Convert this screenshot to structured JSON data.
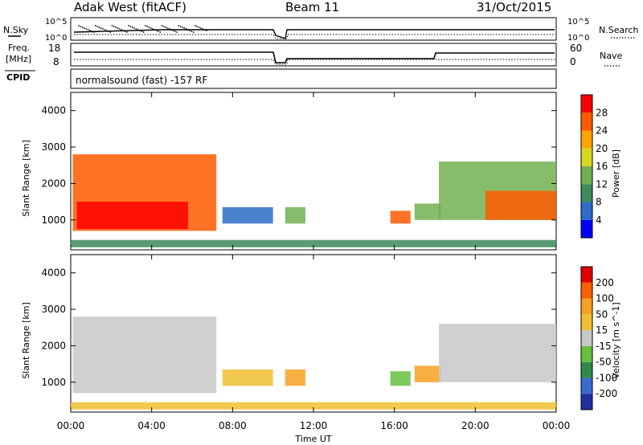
{
  "header": {
    "station": "Adak West (fitACF)",
    "beam": "Beam 11",
    "date": "31/Oct/2015"
  },
  "strips": {
    "noise_left_label": "N.Sky",
    "noise_left_ticks": [
      "10^5",
      "10^0"
    ],
    "noise_right_label": "N.Search",
    "noise_right_ticks": [
      "10^5",
      "10^0"
    ],
    "freq_label_line1": "Freq.",
    "freq_label_line2": "[MHz]",
    "freq_ticks": [
      "18",
      "8"
    ],
    "nave_label": "Nave",
    "nave_ticks": [
      "60",
      "0"
    ],
    "cpid_label": "CPID",
    "cpid_text": "normalsound (fast) -157 RF"
  },
  "chart_data": [
    {
      "type": "heatmap",
      "name": "power",
      "ylabel": "Slant Range [km]",
      "yticks": [
        "4000",
        "3000",
        "2000",
        "1000"
      ],
      "ylim": [
        180,
        4500
      ],
      "colorbar_label": "Power [dB]",
      "colorbar_ticks": [
        "28",
        "24",
        "20",
        "16",
        "12",
        "8",
        "4"
      ],
      "colormap": [
        "#0000ff",
        "#2a6cc8",
        "#3d8a5a",
        "#72b050",
        "#d8d820",
        "#ffa500",
        "#ff5a00",
        "#ff0000"
      ],
      "regions": [
        {
          "t0": 0.1,
          "t1": 7.2,
          "r0": 700,
          "r1": 2800,
          "level": 6
        },
        {
          "t0": 0.3,
          "t1": 5.8,
          "r0": 750,
          "r1": 1500,
          "level": 7
        },
        {
          "t0": 7.5,
          "t1": 10.0,
          "r0": 900,
          "r1": 1350,
          "level": 1
        },
        {
          "t0": 10.6,
          "t1": 11.6,
          "r0": 900,
          "r1": 1350,
          "level": 3
        },
        {
          "t0": 15.8,
          "t1": 16.8,
          "r0": 900,
          "r1": 1250,
          "level": 6
        },
        {
          "t0": 17.0,
          "t1": 18.3,
          "r0": 1000,
          "r1": 1450,
          "level": 3
        },
        {
          "t0": 18.2,
          "t1": 24.0,
          "r0": 1000,
          "r1": 2600,
          "level": 3
        },
        {
          "t0": 20.5,
          "t1": 24.0,
          "r0": 1000,
          "r1": 1800,
          "level": 6
        },
        {
          "t0": 0.0,
          "t1": 24.0,
          "r0": 250,
          "r1": 450,
          "level": 2
        }
      ]
    },
    {
      "type": "heatmap",
      "name": "velocity",
      "xlabel": "Time UT",
      "xticks": [
        "00:00",
        "04:00",
        "08:00",
        "12:00",
        "16:00",
        "20:00",
        "00:00"
      ],
      "xlim": [
        0,
        24
      ],
      "ylabel": "Slant Range [km]",
      "yticks": [
        "4000",
        "3000",
        "2000",
        "1000"
      ],
      "ylim": [
        180,
        4500
      ],
      "colorbar_label": "Velocity [m s^-1]",
      "colorbar_ticks": [
        "200",
        "100",
        "50",
        "15",
        "-15",
        "-50",
        "-100",
        "-200"
      ],
      "colormap": [
        "#2030a0",
        "#3a6ad0",
        "#2f8a4a",
        "#66c040",
        "#c8c8c8",
        "#f0c030",
        "#f8a020",
        "#f86000",
        "#e00000"
      ],
      "regions": [
        {
          "t0": 0.1,
          "t1": 7.2,
          "r0": 700,
          "r1": 2800,
          "level": 4
        },
        {
          "t0": 7.5,
          "t1": 10.0,
          "r0": 900,
          "r1": 1350,
          "level": 5
        },
        {
          "t0": 10.6,
          "t1": 11.6,
          "r0": 900,
          "r1": 1350,
          "level": 6
        },
        {
          "t0": 15.8,
          "t1": 16.8,
          "r0": 900,
          "r1": 1300,
          "level": 3
        },
        {
          "t0": 17.0,
          "t1": 18.3,
          "r0": 1000,
          "r1": 1450,
          "level": 6
        },
        {
          "t0": 18.2,
          "t1": 24.0,
          "r0": 1000,
          "r1": 2600,
          "level": 4
        },
        {
          "t0": 0.0,
          "t1": 24.0,
          "r0": 250,
          "r1": 450,
          "level": 5
        }
      ]
    }
  ]
}
